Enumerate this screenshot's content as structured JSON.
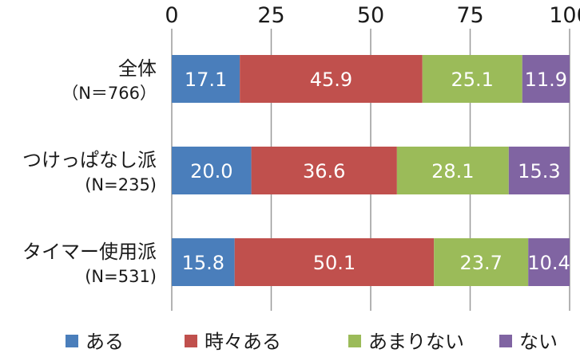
{
  "chart_data": {
    "type": "bar",
    "orientation": "horizontal",
    "stacked": true,
    "xlim": [
      0,
      100
    ],
    "xticks": [
      "0",
      "25",
      "50",
      "75",
      "100"
    ],
    "grid": true,
    "legend_position": "bottom",
    "categories": [
      {
        "label": "全体",
        "sublabel": "（N＝766）"
      },
      {
        "label": "つけっぱなし派",
        "sublabel": "(N=235)"
      },
      {
        "label": "タイマー使用派",
        "sublabel": "(N=531)"
      }
    ],
    "series": [
      {
        "name": "ある",
        "color": "#4a7ebb",
        "values": [
          17.1,
          20.0,
          15.8
        ],
        "labels": [
          "17.1",
          "20.0",
          "15.8"
        ]
      },
      {
        "name": "時々ある",
        "color": "#c0504d",
        "values": [
          45.9,
          36.6,
          50.1
        ],
        "labels": [
          "45.9",
          "36.6",
          "50.1"
        ]
      },
      {
        "name": "あまりない",
        "color": "#9bbb59",
        "values": [
          25.1,
          28.1,
          23.7
        ],
        "labels": [
          "25.1",
          "28.1",
          "23.7"
        ]
      },
      {
        "name": "ない",
        "color": "#8064a2",
        "values": [
          11.9,
          15.3,
          10.4
        ],
        "labels": [
          "11.9",
          "15.3",
          "10.4"
        ]
      }
    ]
  }
}
